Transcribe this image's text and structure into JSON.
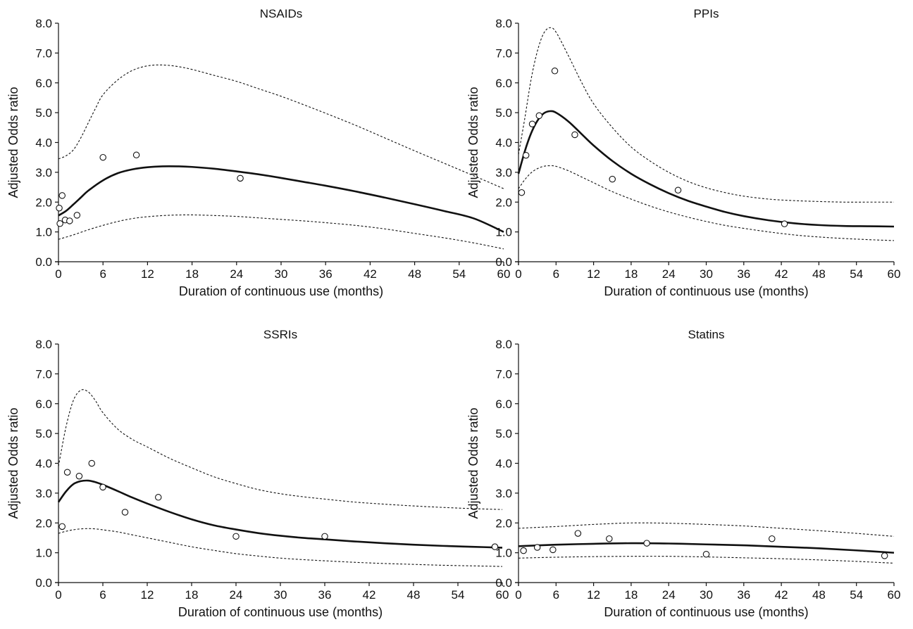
{
  "chart_data": [
    {
      "type": "line",
      "title": "NSAIDs",
      "xlabel": "Duration of continuous use (months)",
      "ylabel": "Adjusted Odds ratio",
      "xlim": [
        0,
        60
      ],
      "ylim": [
        0,
        8
      ],
      "xticks": [
        0,
        6,
        12,
        18,
        24,
        30,
        36,
        42,
        48,
        54,
        60
      ],
      "yticks": [
        0,
        1,
        2,
        3,
        4,
        5,
        6,
        7,
        8
      ],
      "xtick_labels": [
        "0",
        "6",
        "12",
        "18",
        "24",
        "30",
        "36",
        "42",
        "48",
        "54",
        "60"
      ],
      "ytick_labels": [
        "0.0",
        "1.0",
        "2.0",
        "3.0",
        "4.0",
        "5.0",
        "6.0",
        "7.0",
        "8.0"
      ],
      "series": [
        {
          "role": "estimate",
          "style": "solid-thick",
          "x": [
            0,
            1,
            2,
            3,
            4,
            6,
            8,
            10,
            12,
            14,
            16,
            18,
            21,
            24,
            27,
            30,
            33,
            36,
            40,
            44,
            48,
            52,
            56,
            60
          ],
          "y": [
            1.55,
            1.7,
            1.92,
            2.15,
            2.38,
            2.73,
            2.97,
            3.1,
            3.17,
            3.2,
            3.2,
            3.18,
            3.12,
            3.03,
            2.93,
            2.81,
            2.68,
            2.55,
            2.36,
            2.15,
            1.93,
            1.7,
            1.45,
            1.0
          ]
        },
        {
          "role": "ci-upper",
          "style": "dashed",
          "x": [
            0,
            1,
            2,
            3,
            4,
            5,
            6,
            8,
            10,
            12,
            14,
            16,
            18,
            21,
            24,
            27,
            30,
            33,
            36,
            40,
            44,
            48,
            52,
            56,
            60
          ],
          "y": [
            3.45,
            3.55,
            3.75,
            4.15,
            4.65,
            5.15,
            5.6,
            6.1,
            6.42,
            6.57,
            6.6,
            6.55,
            6.45,
            6.25,
            6.05,
            5.8,
            5.55,
            5.27,
            4.98,
            4.58,
            4.15,
            3.72,
            3.3,
            2.88,
            2.45
          ]
        },
        {
          "role": "ci-lower",
          "style": "dashed",
          "x": [
            0,
            2,
            4,
            6,
            8,
            10,
            12,
            15,
            18,
            21,
            24,
            27,
            30,
            33,
            36,
            40,
            44,
            48,
            52,
            56,
            60
          ],
          "y": [
            0.75,
            0.9,
            1.07,
            1.22,
            1.35,
            1.45,
            1.51,
            1.56,
            1.57,
            1.55,
            1.52,
            1.47,
            1.42,
            1.37,
            1.31,
            1.22,
            1.1,
            0.95,
            0.8,
            0.63,
            0.43
          ]
        },
        {
          "role": "observed",
          "style": "open-circle",
          "x": [
            0.1,
            0.2,
            0.5,
            0.9,
            1.5,
            2.5,
            6.0,
            10.5,
            24.5
          ],
          "y": [
            1.8,
            1.28,
            2.22,
            1.4,
            1.37,
            1.56,
            3.5,
            3.58,
            2.8
          ]
        }
      ]
    },
    {
      "type": "line",
      "title": "PPIs",
      "xlabel": "Duration of continuous use (months)",
      "ylabel": "Adjusted Odds ratio",
      "xlim": [
        0,
        60
      ],
      "ylim": [
        0,
        8
      ],
      "xticks": [
        0,
        6,
        12,
        18,
        24,
        30,
        36,
        42,
        48,
        54,
        60
      ],
      "yticks": [
        0,
        1,
        2,
        3,
        4,
        5,
        6,
        7,
        8
      ],
      "xtick_labels": [
        "0",
        "6",
        "12",
        "18",
        "24",
        "30",
        "36",
        "42",
        "48",
        "54",
        "60"
      ],
      "ytick_labels": [
        "0.0",
        "1.0",
        "2.0",
        "3.0",
        "4.0",
        "5.0",
        "6.0",
        "7.0",
        "8.0"
      ],
      "series": [
        {
          "role": "estimate",
          "style": "solid-thick",
          "x": [
            0,
            1,
            2,
            3,
            4,
            5,
            6,
            8,
            10,
            12,
            15,
            18,
            21,
            24,
            27,
            30,
            33,
            36,
            40,
            44,
            48,
            52,
            56,
            60
          ],
          "y": [
            2.95,
            3.7,
            4.3,
            4.72,
            4.97,
            5.05,
            5.0,
            4.7,
            4.3,
            3.9,
            3.38,
            2.95,
            2.6,
            2.3,
            2.05,
            1.85,
            1.67,
            1.53,
            1.39,
            1.29,
            1.23,
            1.2,
            1.19,
            1.18
          ]
        },
        {
          "role": "ci-upper",
          "style": "dashed",
          "x": [
            0,
            1,
            2,
            3,
            4,
            5,
            6,
            8,
            10,
            12,
            15,
            18,
            21,
            24,
            27,
            30,
            33,
            36,
            40,
            44,
            48,
            52,
            56,
            60
          ],
          "y": [
            3.6,
            4.8,
            6.1,
            7.05,
            7.65,
            7.85,
            7.7,
            6.9,
            6.05,
            5.3,
            4.5,
            3.85,
            3.38,
            3.0,
            2.7,
            2.48,
            2.32,
            2.2,
            2.1,
            2.05,
            2.02,
            2.0,
            2.0,
            2.0
          ]
        },
        {
          "role": "ci-lower",
          "style": "dashed",
          "x": [
            0,
            1,
            2,
            3,
            4,
            5,
            6,
            8,
            10,
            12,
            15,
            18,
            21,
            24,
            27,
            30,
            33,
            36,
            40,
            44,
            48,
            52,
            56,
            60
          ],
          "y": [
            2.45,
            2.75,
            2.98,
            3.12,
            3.2,
            3.22,
            3.2,
            3.05,
            2.85,
            2.65,
            2.35,
            2.1,
            1.87,
            1.67,
            1.5,
            1.35,
            1.22,
            1.12,
            1.0,
            0.9,
            0.83,
            0.78,
            0.74,
            0.71
          ]
        },
        {
          "role": "observed",
          "style": "open-circle",
          "x": [
            0.5,
            1.2,
            2.2,
            3.3,
            5.8,
            9.0,
            15.0,
            25.5,
            42.5
          ],
          "y": [
            2.32,
            3.57,
            4.62,
            4.9,
            6.4,
            4.26,
            2.77,
            2.4,
            1.27
          ]
        }
      ]
    },
    {
      "type": "line",
      "title": "SSRIs",
      "xlabel": "Duration of continuous use (months)",
      "ylabel": "Adjusted Odds ratio",
      "xlim": [
        0,
        60
      ],
      "ylim": [
        0,
        8
      ],
      "xticks": [
        0,
        6,
        12,
        18,
        24,
        30,
        36,
        42,
        48,
        54,
        60
      ],
      "yticks": [
        0,
        1,
        2,
        3,
        4,
        5,
        6,
        7,
        8
      ],
      "xtick_labels": [
        "0",
        "6",
        "12",
        "18",
        "24",
        "30",
        "36",
        "42",
        "48",
        "54",
        "60"
      ],
      "ytick_labels": [
        "0.0",
        "1.0",
        "2.0",
        "3.0",
        "4.0",
        "5.0",
        "6.0",
        "7.0",
        "8.0"
      ],
      "series": [
        {
          "role": "estimate",
          "style": "solid-thick",
          "x": [
            0,
            1,
            2,
            3,
            4,
            5,
            6,
            8,
            10,
            12,
            15,
            18,
            21,
            24,
            27,
            30,
            33,
            36,
            40,
            44,
            48,
            52,
            56,
            60
          ],
          "y": [
            2.7,
            3.05,
            3.3,
            3.4,
            3.42,
            3.37,
            3.28,
            3.07,
            2.85,
            2.65,
            2.37,
            2.12,
            1.92,
            1.78,
            1.66,
            1.57,
            1.5,
            1.45,
            1.38,
            1.32,
            1.27,
            1.23,
            1.2,
            1.17
          ]
        },
        {
          "role": "ci-upper",
          "style": "dashed",
          "x": [
            0,
            1,
            2,
            3,
            4,
            5,
            6,
            8,
            10,
            12,
            15,
            18,
            21,
            24,
            27,
            30,
            33,
            36,
            40,
            44,
            48,
            52,
            56,
            60
          ],
          "y": [
            3.9,
            5.2,
            6.1,
            6.45,
            6.4,
            6.1,
            5.7,
            5.15,
            4.8,
            4.55,
            4.17,
            3.85,
            3.55,
            3.32,
            3.12,
            2.98,
            2.88,
            2.8,
            2.7,
            2.63,
            2.57,
            2.52,
            2.48,
            2.45
          ]
        },
        {
          "role": "ci-lower",
          "style": "dashed",
          "x": [
            0,
            1,
            2,
            3,
            4,
            5,
            6,
            8,
            10,
            12,
            15,
            18,
            21,
            24,
            27,
            30,
            33,
            36,
            40,
            44,
            48,
            52,
            56,
            60
          ],
          "y": [
            1.65,
            1.72,
            1.77,
            1.8,
            1.81,
            1.8,
            1.77,
            1.7,
            1.6,
            1.5,
            1.35,
            1.2,
            1.08,
            0.97,
            0.89,
            0.82,
            0.77,
            0.73,
            0.68,
            0.64,
            0.61,
            0.58,
            0.56,
            0.54
          ]
        },
        {
          "role": "observed",
          "style": "open-circle",
          "x": [
            0.5,
            1.2,
            2.8,
            4.5,
            6.0,
            9.0,
            13.5,
            24.0,
            36.0,
            59.0
          ],
          "y": [
            1.88,
            3.7,
            3.57,
            4.0,
            3.2,
            2.36,
            2.86,
            1.55,
            1.55,
            1.2
          ]
        }
      ]
    },
    {
      "type": "line",
      "title": "Statins",
      "xlabel": "Duration of continuous use (months)",
      "ylabel": "Adjusted Odds ratio",
      "xlim": [
        0,
        60
      ],
      "ylim": [
        0,
        8
      ],
      "xticks": [
        0,
        6,
        12,
        18,
        24,
        30,
        36,
        42,
        48,
        54,
        60
      ],
      "yticks": [
        0,
        1,
        2,
        3,
        4,
        5,
        6,
        7,
        8
      ],
      "xtick_labels": [
        "0",
        "6",
        "12",
        "18",
        "24",
        "30",
        "36",
        "42",
        "48",
        "54",
        "60"
      ],
      "ytick_labels": [
        "0.0",
        "1.0",
        "2.0",
        "3.0",
        "4.0",
        "5.0",
        "6.0",
        "7.0",
        "8.0"
      ],
      "series": [
        {
          "role": "estimate",
          "style": "solid-thick",
          "x": [
            0,
            6,
            12,
            18,
            24,
            30,
            36,
            42,
            48,
            54,
            60
          ],
          "y": [
            1.22,
            1.27,
            1.3,
            1.32,
            1.31,
            1.28,
            1.25,
            1.2,
            1.15,
            1.08,
            1.0
          ]
        },
        {
          "role": "ci-upper",
          "style": "dashed",
          "x": [
            0,
            6,
            12,
            18,
            24,
            30,
            36,
            42,
            48,
            54,
            60
          ],
          "y": [
            1.82,
            1.88,
            1.95,
            2.0,
            1.99,
            1.95,
            1.9,
            1.82,
            1.74,
            1.65,
            1.55
          ]
        },
        {
          "role": "ci-lower",
          "style": "dashed",
          "x": [
            0,
            6,
            12,
            18,
            24,
            30,
            36,
            42,
            48,
            54,
            60
          ],
          "y": [
            0.82,
            0.85,
            0.87,
            0.88,
            0.88,
            0.86,
            0.83,
            0.8,
            0.76,
            0.71,
            0.65
          ]
        },
        {
          "role": "observed",
          "style": "open-circle",
          "x": [
            0.8,
            3.0,
            5.5,
            9.5,
            14.5,
            20.5,
            30.0,
            40.5,
            58.5
          ],
          "y": [
            1.07,
            1.18,
            1.1,
            1.65,
            1.47,
            1.32,
            0.95,
            1.47,
            0.9
          ]
        }
      ]
    }
  ]
}
